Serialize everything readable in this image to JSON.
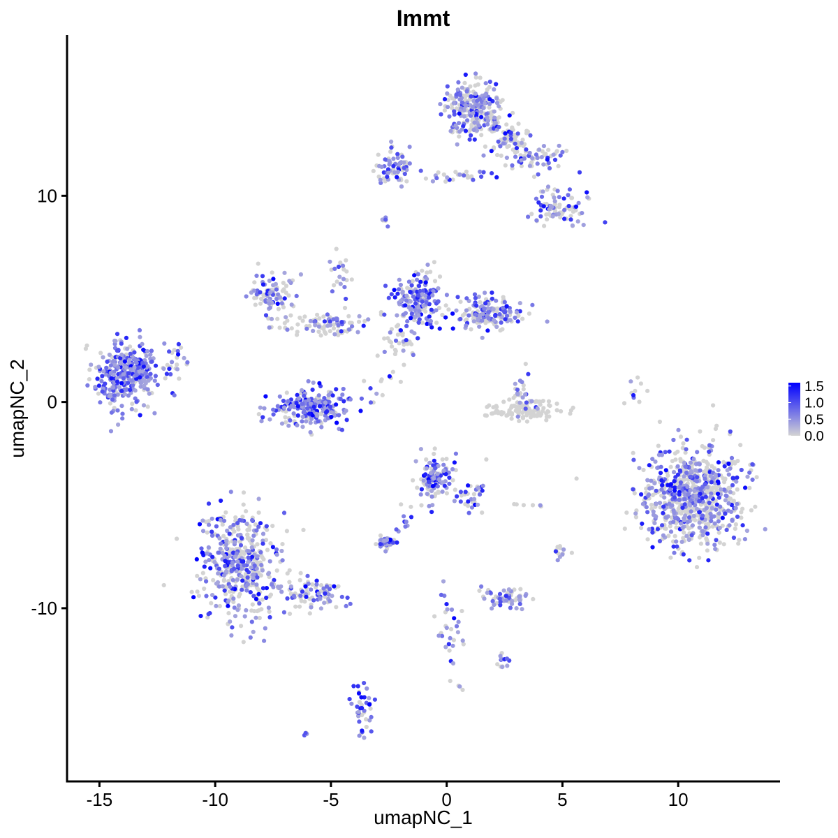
{
  "chart_data": {
    "type": "scatter",
    "title": "Immt",
    "xlabel": "umapNC_1",
    "ylabel": "umapNC_2",
    "xlim": [
      -16.4,
      14.4
    ],
    "ylim": [
      -18.4,
      17.8
    ],
    "xticks": [
      -15,
      -10,
      -5,
      0,
      5,
      10
    ],
    "yticks": [
      -10,
      0,
      10
    ],
    "xtick_labels": [
      "-15",
      "-10",
      "-5",
      "0",
      "5",
      "10"
    ],
    "ytick_labels": [
      "-10",
      "0",
      "10"
    ],
    "grid": false,
    "legend": {
      "position": "right",
      "type": "colorbar",
      "range": [
        0,
        1.6
      ],
      "ticks": [
        0.0,
        0.5,
        1.0,
        1.5
      ],
      "tick_labels": [
        "0.0",
        "0.5",
        "1.0",
        "1.5"
      ],
      "low_color": "#d3d3d3",
      "high_color": "#0000ff"
    },
    "clusters": [
      {
        "cx": -13.8,
        "cy": 1.3,
        "sx": 0.85,
        "sy": 1.0,
        "n": 320,
        "expr": 0.85
      },
      {
        "cx": -11.8,
        "cy": 2.0,
        "sx": 0.3,
        "sy": 0.6,
        "n": 20,
        "expr": 0.5
      },
      {
        "cx": -9.0,
        "cy": -7.8,
        "sx": 1.0,
        "sy": 1.6,
        "n": 440,
        "expr": 0.55
      },
      {
        "cx": -5.8,
        "cy": -9.4,
        "sx": 1.1,
        "sy": 0.5,
        "n": 90,
        "expr": 0.5
      },
      {
        "cx": -6.0,
        "cy": -0.3,
        "sx": 1.0,
        "sy": 0.6,
        "n": 220,
        "expr": 0.75
      },
      {
        "cx": -7.5,
        "cy": 5.2,
        "sx": 0.6,
        "sy": 0.6,
        "n": 90,
        "expr": 0.5
      },
      {
        "cx": -5.3,
        "cy": 3.8,
        "sx": 1.3,
        "sy": 0.4,
        "n": 90,
        "expr": 0.35
      },
      {
        "cx": -4.6,
        "cy": 6.3,
        "sx": 0.3,
        "sy": 0.9,
        "n": 20,
        "expr": 0.5
      },
      {
        "cx": -1.2,
        "cy": 5.0,
        "sx": 0.6,
        "sy": 0.9,
        "n": 170,
        "expr": 0.7
      },
      {
        "cx": 1.7,
        "cy": 4.3,
        "sx": 1.0,
        "sy": 0.5,
        "n": 160,
        "expr": 0.6
      },
      {
        "cx": -2.0,
        "cy": 3.0,
        "sx": 0.5,
        "sy": 0.8,
        "n": 40,
        "expr": 0.3
      },
      {
        "cx": 1.2,
        "cy": 14.2,
        "sx": 0.8,
        "sy": 0.9,
        "n": 260,
        "expr": 0.55
      },
      {
        "cx": 2.8,
        "cy": 12.7,
        "sx": 0.6,
        "sy": 0.6,
        "n": 70,
        "expr": 0.25
      },
      {
        "cx": -2.2,
        "cy": 11.3,
        "sx": 0.6,
        "sy": 0.5,
        "n": 70,
        "expr": 0.6
      },
      {
        "cx": 0.0,
        "cy": 11.0,
        "sx": 1.2,
        "sy": 0.2,
        "n": 25,
        "expr": 0.5
      },
      {
        "cx": 4.0,
        "cy": 11.8,
        "sx": 0.8,
        "sy": 0.4,
        "n": 50,
        "expr": 0.45
      },
      {
        "cx": 4.8,
        "cy": 9.4,
        "sx": 0.8,
        "sy": 0.5,
        "n": 80,
        "expr": 0.55
      },
      {
        "cx": -2.7,
        "cy": 8.8,
        "sx": 0.1,
        "sy": 0.2,
        "n": 6,
        "expr": 0.5
      },
      {
        "cx": -0.6,
        "cy": -3.7,
        "sx": 0.5,
        "sy": 0.7,
        "n": 120,
        "expr": 0.65
      },
      {
        "cx": 1.1,
        "cy": -4.5,
        "sx": 0.4,
        "sy": 0.5,
        "n": 30,
        "expr": 0.5
      },
      {
        "cx": -2.6,
        "cy": -6.8,
        "sx": 0.3,
        "sy": 0.2,
        "n": 40,
        "expr": 0.75
      },
      {
        "cx": -2.0,
        "cy": -5.8,
        "sx": 0.3,
        "sy": 0.4,
        "n": 10,
        "expr": 0.6
      },
      {
        "cx": 2.5,
        "cy": -9.5,
        "sx": 0.6,
        "sy": 0.3,
        "n": 60,
        "expr": 0.6
      },
      {
        "cx": 3.1,
        "cy": -5.0,
        "sx": 1.2,
        "sy": 0.1,
        "n": 6,
        "expr": 0.5
      },
      {
        "cx": 3.4,
        "cy": -0.4,
        "sx": 1.0,
        "sy": 0.3,
        "n": 110,
        "expr": 0.04
      },
      {
        "cx": 3.3,
        "cy": 0.5,
        "sx": 0.3,
        "sy": 0.6,
        "n": 25,
        "expr": 0.5
      },
      {
        "cx": 10.6,
        "cy": -4.6,
        "sx": 1.3,
        "sy": 1.45,
        "n": 760,
        "expr": 0.45
      },
      {
        "cx": 5.0,
        "cy": -7.4,
        "sx": 0.3,
        "sy": 0.3,
        "n": 12,
        "expr": 0.5
      },
      {
        "cx": 8.1,
        "cy": 0.4,
        "sx": 0.2,
        "sy": 0.5,
        "n": 10,
        "expr": 0.5
      },
      {
        "cx": 0.1,
        "cy": -11.1,
        "sx": 0.4,
        "sy": 1.2,
        "n": 30,
        "expr": 0.7
      },
      {
        "cx": 2.3,
        "cy": -12.6,
        "sx": 0.3,
        "sy": 0.3,
        "n": 12,
        "expr": 0.55
      },
      {
        "cx": -3.6,
        "cy": -14.9,
        "sx": 0.25,
        "sy": 0.8,
        "n": 40,
        "expr": 0.75
      },
      {
        "cx": -6.0,
        "cy": -16.1,
        "sx": 0.1,
        "sy": 0.1,
        "n": 4,
        "expr": 0.8
      },
      {
        "cx": -3.0,
        "cy": 0.9,
        "sx": 0.6,
        "sy": 0.5,
        "n": 10,
        "expr": 0.3
      },
      {
        "cx": 0.6,
        "cy": -13.9,
        "sx": 0.1,
        "sy": 0.1,
        "n": 3,
        "expr": 0.7
      }
    ]
  }
}
